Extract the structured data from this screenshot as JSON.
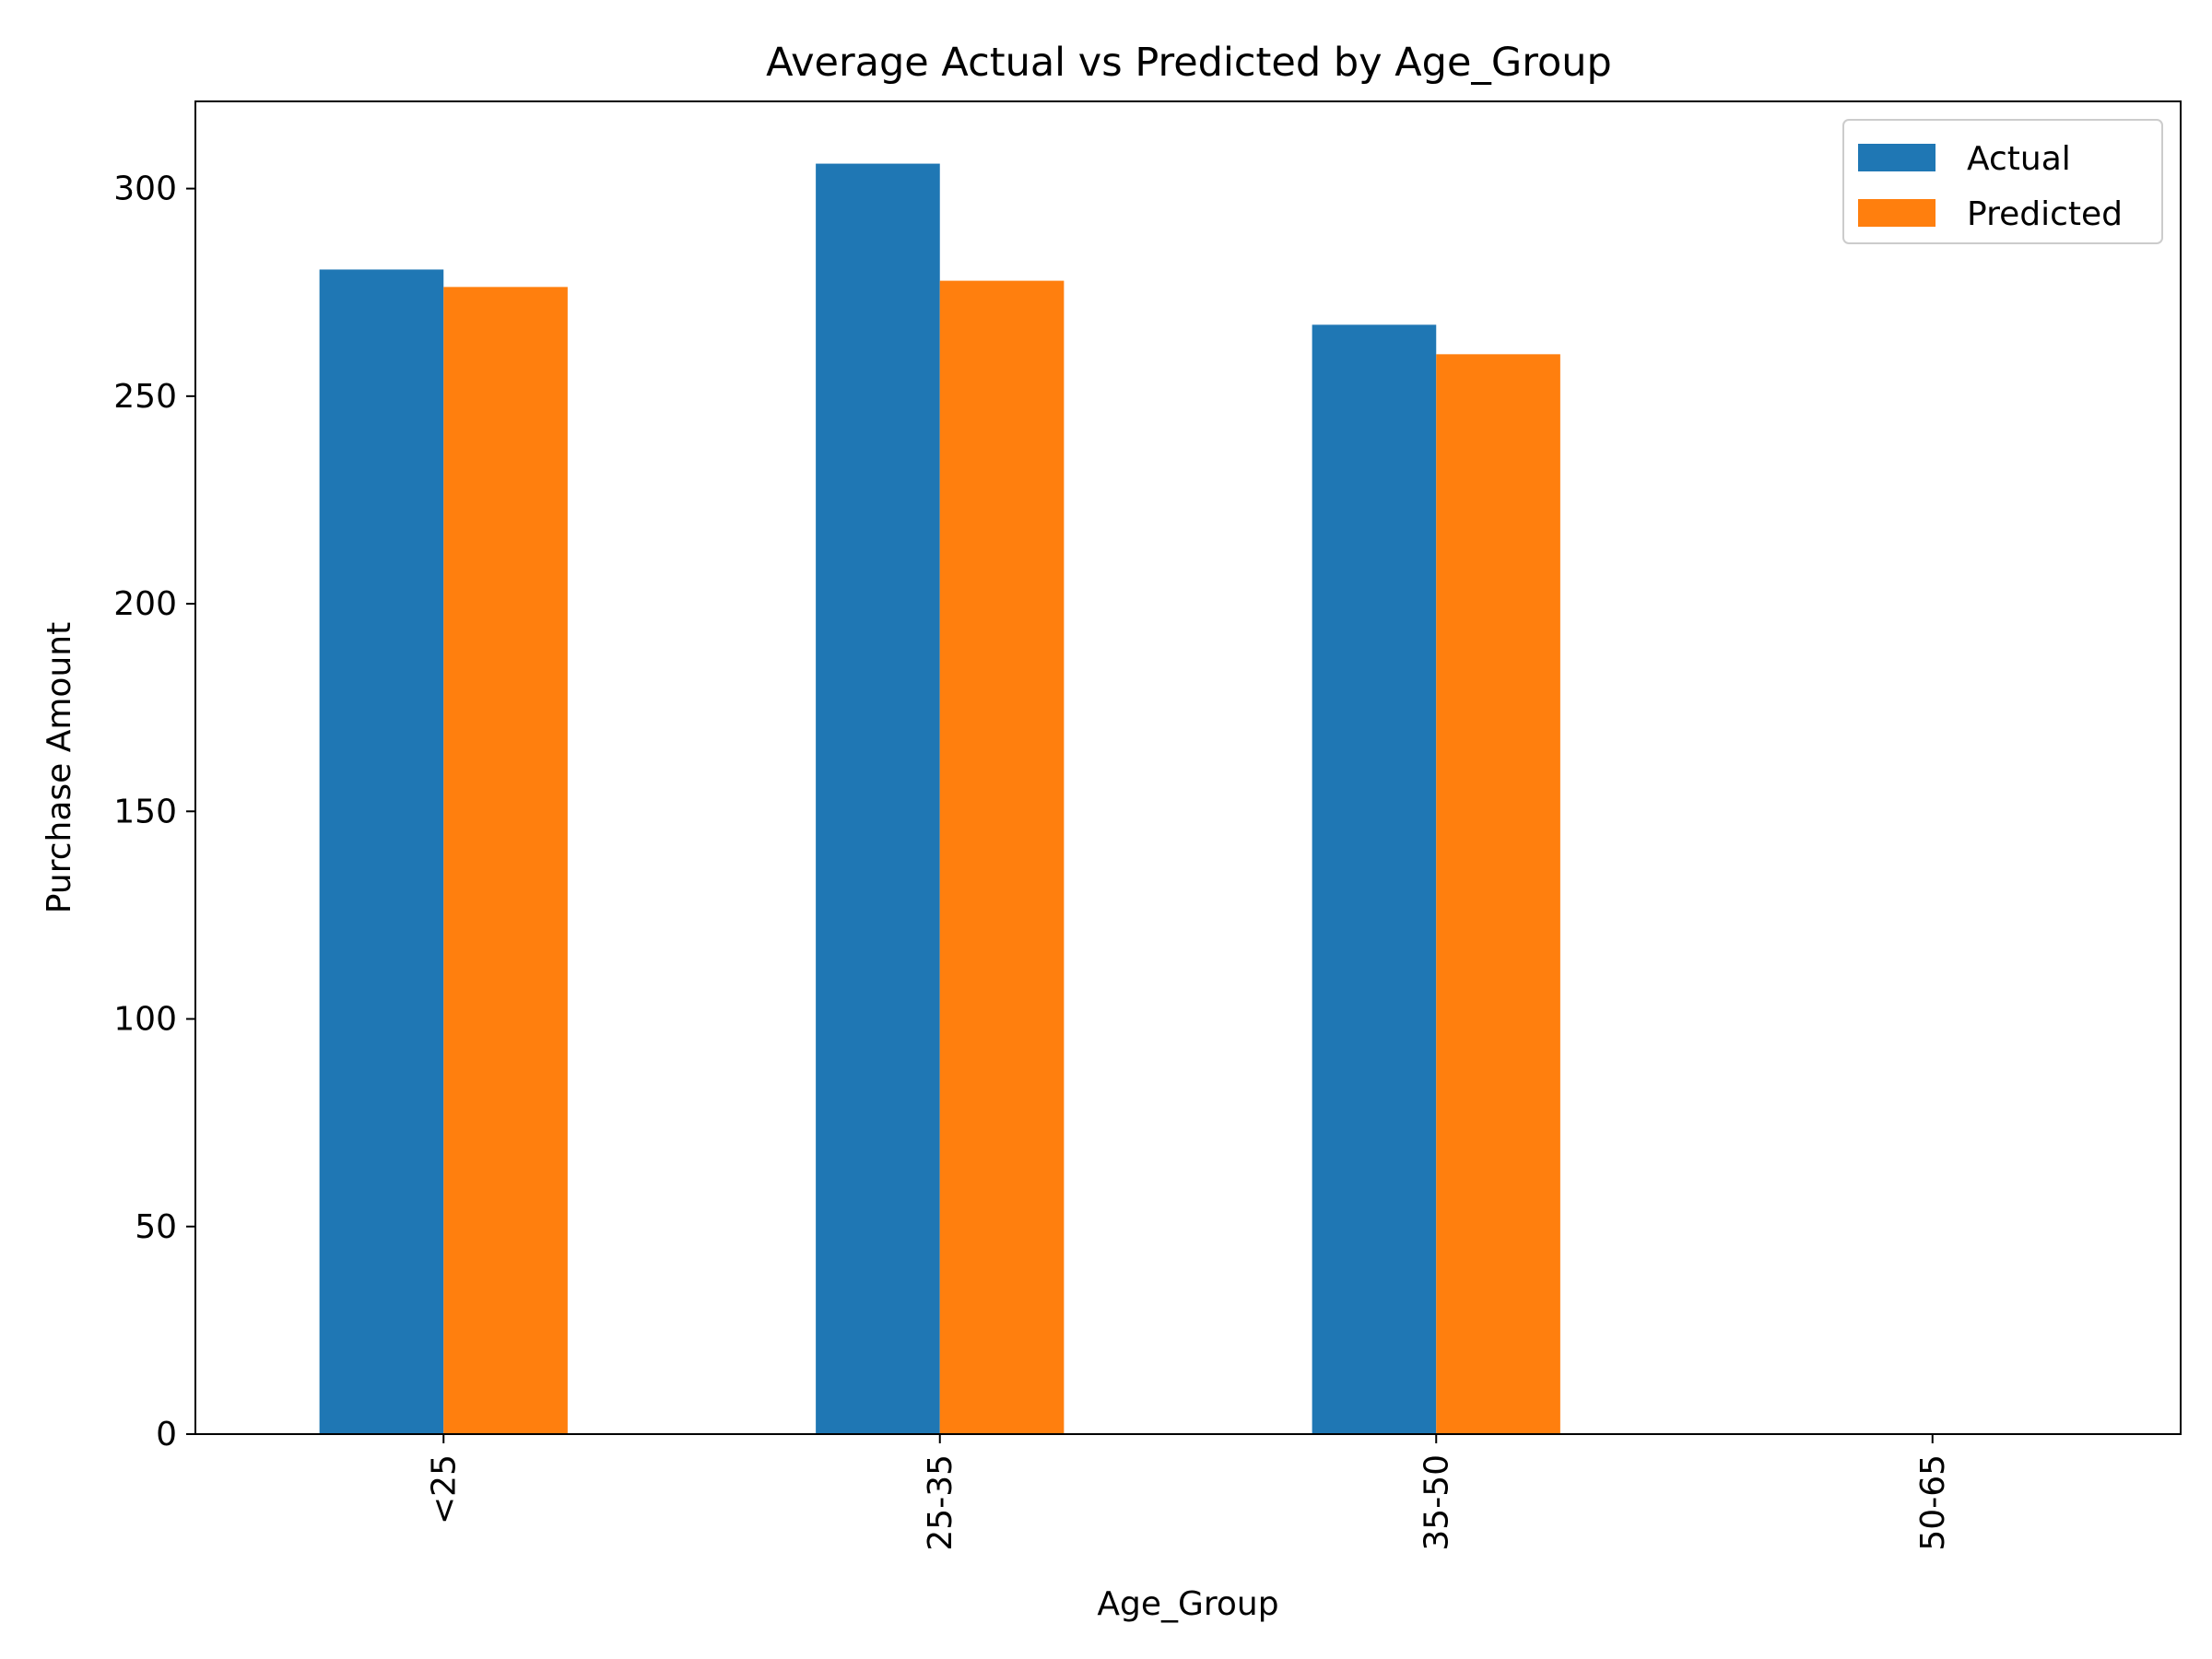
{
  "chart_data": {
    "type": "bar",
    "title": "Average Actual vs Predicted by Age_Group",
    "xlabel": "Age_Group",
    "ylabel": "Purchase Amount",
    "categories": [
      "<25",
      "25-35",
      "35-50",
      "50-65"
    ],
    "series": [
      {
        "name": "Actual",
        "color": "#1f77b4",
        "values": [
          280.5,
          306,
          267.2,
          null
        ]
      },
      {
        "name": "Predicted",
        "color": "#ff7f0e",
        "values": [
          276.3,
          277.8,
          260.1,
          null
        ]
      }
    ],
    "ylim": [
      0,
      321
    ],
    "yticks": [
      0,
      50,
      100,
      150,
      200,
      250,
      300
    ],
    "grid": false,
    "legend_position": "top-right",
    "x_tick_rotation": "vertical"
  }
}
